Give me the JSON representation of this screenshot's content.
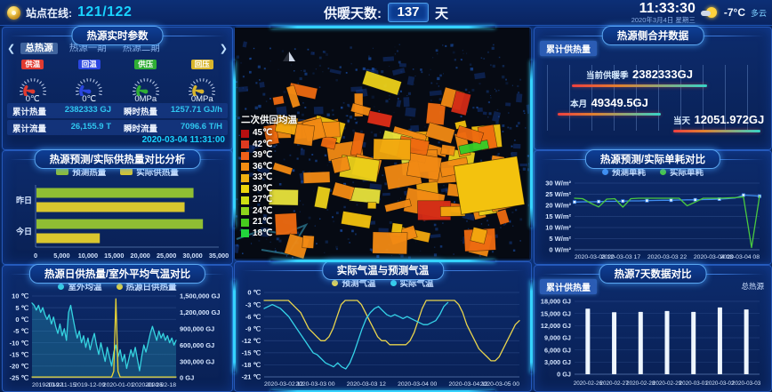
{
  "topbar": {
    "station_label": "站点在线:",
    "station_value": "121/122",
    "heating_label": "供暖天数:",
    "heating_value": "137",
    "heating_unit": "天",
    "time": "11:33:30",
    "date": "2020年3月4日 星期三",
    "temperature": "-7°C",
    "weather": "多云"
  },
  "panels": {
    "realtime": {
      "title": "热源实时参数",
      "tabs": [
        {
          "label": "总热源",
          "active": true
        },
        {
          "label": "热源一期",
          "active": false
        },
        {
          "label": "热源二期",
          "active": false
        }
      ],
      "gauges": [
        {
          "label": "供温",
          "color": "#e03a30",
          "value": "0℃"
        },
        {
          "label": "回温",
          "color": "#2a46e0",
          "value": "0℃"
        },
        {
          "label": "供压",
          "color": "#2fae35",
          "value": "0MPa"
        },
        {
          "label": "回压",
          "color": "#d8b52c",
          "value": "0MPa"
        }
      ],
      "stats": [
        {
          "label": "累计热量",
          "value": "2382333 GJ"
        },
        {
          "label": "瞬时热量",
          "value": "1257.71 GJ/h"
        },
        {
          "label": "累计流量",
          "value": "26,155.9 T"
        },
        {
          "label": "瞬时流量",
          "value": "7096.6 T/H"
        }
      ],
      "timestamp": "2020-03-04 11:31:00"
    },
    "map": {
      "legend_title": "二次供回均温",
      "legend": [
        {
          "label": "45℃",
          "color": "#b80f10"
        },
        {
          "label": "42℃",
          "color": "#e03a20"
        },
        {
          "label": "39℃",
          "color": "#f06018"
        },
        {
          "label": "36℃",
          "color": "#f28c12"
        },
        {
          "label": "33℃",
          "color": "#f0b010"
        },
        {
          "label": "30℃",
          "color": "#ecd40c"
        },
        {
          "label": "27℃",
          "color": "#cede12"
        },
        {
          "label": "24℃",
          "color": "#8ed41c"
        },
        {
          "label": "21℃",
          "color": "#46cc1e"
        },
        {
          "label": "18℃",
          "color": "#22d43c"
        }
      ]
    },
    "merged": {
      "title": "热源侧合并数据",
      "badge": "累计供热量",
      "items": [
        {
          "label": "当前供暖季",
          "value": "2382333GJ"
        },
        {
          "label": "本月",
          "value": "49349.5GJ"
        },
        {
          "label": "当天",
          "value": "12051.972GJ"
        }
      ]
    },
    "seven_day": {
      "badge": "累计供热量",
      "corner": "总热源"
    }
  },
  "chart_data": [
    {
      "id": "heat_compare",
      "type": "bar",
      "orientation": "horizontal",
      "title": "热源预测/实际供热量对比分析",
      "categories": [
        "昨日",
        "今日"
      ],
      "series": [
        {
          "name": "预测热量",
          "color": "#8fbe33",
          "values": [
            30000,
            31800
          ]
        },
        {
          "name": "实际供热量",
          "color": "#d8c62e",
          "values": [
            28300,
            12100
          ]
        }
      ],
      "x_ticks": [
        "0",
        "5,000",
        "10,000",
        "15,000",
        "20,000",
        "25,000",
        "30,000",
        "35,000"
      ],
      "xmax": 35000,
      "legend_position": "top"
    },
    {
      "id": "daily_heat_temp",
      "type": "line",
      "title": "热源日供热量/室外平均气温对比",
      "legend": [
        {
          "name": "室外均温",
          "color": "#35d3e0"
        },
        {
          "name": "热源日供热量",
          "color": "#e8d435"
        }
      ],
      "y_left": {
        "ticks": [
          "10 ℃",
          "5 ℃",
          "0 ℃",
          "-5 ℃",
          "-10 ℃",
          "-15 ℃",
          "-20 ℃",
          "-25 ℃"
        ],
        "max": 10,
        "min": -25
      },
      "y_right": {
        "ticks": [
          "1,500,000 GJ",
          "1,200,000 GJ",
          "900,000 GJ",
          "600,000 GJ",
          "300,000 GJ",
          "0 GJ"
        ],
        "max": 1500000,
        "min": 0
      },
      "x_ticks": [
        "2019-10-22",
        "2019-11-15",
        "2019-12-09",
        "2020-01-01",
        "2020-01-25",
        "2020-02-18"
      ],
      "series": [
        {
          "name": "室外均温",
          "color": "#35d3e0",
          "axis": "left",
          "fill": "rgba(45,180,205,0.28)",
          "values": [
            7,
            6,
            4,
            6,
            3,
            5,
            2,
            0,
            2,
            -2,
            1,
            -3,
            -6,
            -2,
            -7,
            -4,
            -9,
            3,
            6,
            1,
            -4,
            -8,
            -5,
            -10,
            -7,
            -12,
            -8,
            -13,
            -9,
            -6,
            -11,
            -15,
            -10,
            -14,
            -18,
            -12,
            -16,
            -20,
            -14,
            -11,
            -16,
            -13,
            -18,
            -15,
            -21,
            -17,
            -13,
            -16,
            -12,
            -17,
            -22,
            -16,
            -11,
            -14,
            -10,
            -6,
            -3,
            -6,
            -9,
            -5,
            -8,
            -6,
            -9,
            -7,
            -10,
            -8,
            -11,
            -9
          ]
        },
        {
          "name": "热源日供热量",
          "color": "#e8d435",
          "axis": "right",
          "values": [
            15000,
            15000,
            15000,
            15000,
            15000,
            15000,
            15000,
            15000,
            15000,
            15000,
            15000,
            15000,
            15000,
            15000,
            15000,
            15000,
            15000,
            15000,
            15000,
            15000,
            15000,
            15000,
            15000,
            15000,
            15000,
            15000,
            15000,
            15000,
            15000,
            15000,
            15000,
            15000,
            15000,
            15000,
            15000,
            15000,
            15000,
            15000,
            120000,
            1450000,
            120000,
            15000,
            15000,
            15000,
            15000,
            15000,
            15000,
            15000,
            15000,
            15000,
            15000,
            15000,
            15000,
            15000,
            15000,
            15000,
            15000,
            15000,
            15000,
            15000,
            15000,
            15000,
            15000,
            15000,
            15000,
            15000,
            15000,
            15000
          ]
        }
      ]
    },
    {
      "id": "temp_compare",
      "type": "line",
      "title": "实际气温与预测气温",
      "legend": [
        {
          "name": "预测气温",
          "color": "#e8d44d"
        },
        {
          "name": "实际气温",
          "color": "#35d3e8"
        }
      ],
      "y_left": {
        "ticks": [
          "0 ℃",
          "-3 ℃",
          "-6 ℃",
          "-9 ℃",
          "-12 ℃",
          "-15 ℃",
          "-18 ℃",
          "-21 ℃"
        ],
        "max": 0,
        "min": -21
      },
      "x_ticks": [
        "2020-03-02 12",
        "2020-03-03 00",
        "2020-03-03 12",
        "2020-03-04 00",
        "2020-03-04 12",
        "2020-03-05 00"
      ],
      "series": [
        {
          "name": "预测气温",
          "color": "#e8d44d",
          "axis": "left",
          "values": [
            -2,
            -2,
            -2,
            -2,
            -2,
            -2,
            -2,
            -3,
            -4,
            -5,
            -7,
            -9,
            -10,
            -11,
            -12,
            -12,
            -11,
            -9,
            -6,
            -3,
            -2,
            -2,
            -2,
            -2,
            -3,
            -5,
            -7,
            -9,
            -11,
            -12,
            -12,
            -13,
            -13,
            -13,
            -13,
            -13,
            -12,
            -10,
            -7,
            -4,
            -2,
            -2,
            -2,
            -2,
            -2,
            -2,
            -2,
            -2,
            -3,
            -5,
            -8,
            -10,
            -12,
            -14,
            -15,
            -16,
            -17,
            -17,
            -16,
            -14,
            -12,
            -10,
            -8,
            -7
          ]
        },
        {
          "name": "实际气温",
          "color": "#35d3e8",
          "axis": "left",
          "x_end": 0.72,
          "values": [
            -4,
            -3.5,
            -3,
            -3.5,
            -4,
            -5,
            -6,
            -7.5,
            -9,
            -10.5,
            -12,
            -13.5,
            -15,
            -15.5,
            -16.5,
            -17.5,
            -18,
            -18.5,
            -17.5,
            -18.5,
            -19,
            -17.5,
            -15,
            -12,
            -9,
            -6.5,
            -5,
            -4,
            -3.5,
            -4.5,
            -5.5,
            -6,
            -5.5,
            -6,
            -6.5,
            -6,
            -6.5,
            -7,
            -7.5,
            -8,
            -8,
            -7.5,
            -7,
            -5.5,
            -3.5,
            -2.5
          ]
        }
      ]
    },
    {
      "id": "unit_consumption",
      "type": "line",
      "title": "热源预测/实际单耗对比",
      "legend": [
        {
          "name": "预测单耗",
          "color": "#3f8cf0"
        },
        {
          "name": "实际单耗",
          "color": "#49c93f"
        }
      ],
      "y_left": {
        "ticks": [
          "30 W/m²",
          "25 W/m²",
          "20 W/m²",
          "15 W/m²",
          "10 W/m²",
          "5 W/m²",
          "0 W/m²"
        ],
        "max": 30,
        "min": 0
      },
      "x_ticks": [
        "2020-03-03 12",
        "2020-03-03 17",
        "2020-03-03 22",
        "2020-03-04 03",
        "2020-03-04 08"
      ],
      "series": [
        {
          "name": "预测单耗",
          "color": "#3f8cf0",
          "axis": "left",
          "markers": true,
          "values": [
            21.5,
            21.6,
            21.6,
            21.7,
            21.8,
            21.8,
            21.9,
            22,
            22,
            22.1,
            22.2,
            22.3,
            22.3,
            22.4,
            22.5,
            22.5,
            22.6,
            22.7,
            22.8,
            23,
            23.3,
            24.6,
            24.4,
            24.1
          ]
        },
        {
          "name": "实际单耗",
          "color": "#49c93f",
          "axis": "left",
          "values": [
            23.2,
            23,
            21,
            19.3,
            22.8,
            23,
            19.2,
            23,
            23.2,
            23.2,
            23.2,
            23.2,
            23.2,
            23.2,
            19.8,
            21.5,
            23.2,
            23.2,
            23.2,
            23.3,
            23.5,
            23.8,
            1,
            24.2
          ]
        }
      ]
    },
    {
      "id": "seven_day",
      "type": "bar",
      "orientation": "vertical",
      "title": "热源7天数据对比",
      "categories": [
        "2020-02-26",
        "2020-02-27",
        "2020-02-28",
        "2020-02-29",
        "2020-03-01",
        "2020-03-02",
        "2020-03-03"
      ],
      "series": [
        {
          "name": "累计供热量",
          "color": "#eef6ff",
          "values": [
            16200,
            15300,
            15400,
            15600,
            15400,
            16500,
            16000
          ]
        }
      ],
      "y_ticks": [
        "18,000 GJ",
        "15,000 GJ",
        "12,000 GJ",
        "9,000 GJ",
        "6,000 GJ",
        "3,000 GJ",
        "0 GJ"
      ],
      "ymax": 18000
    }
  ]
}
